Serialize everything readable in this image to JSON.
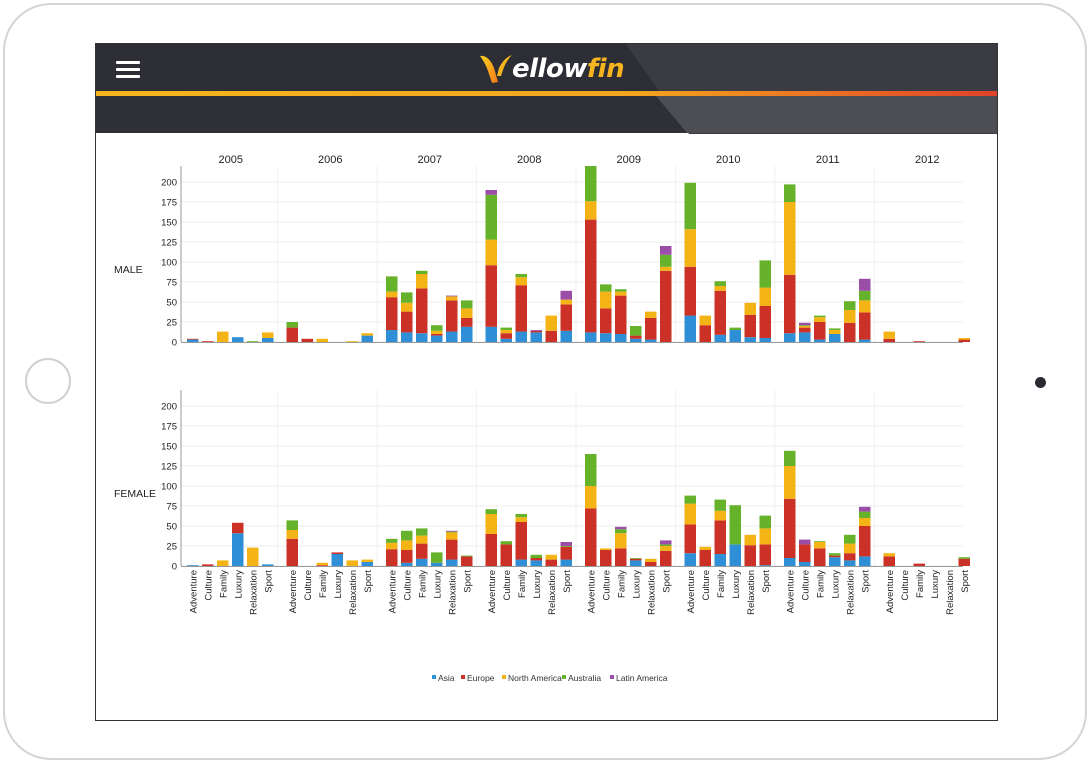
{
  "app": {
    "logo_text_main": "ellow",
    "logo_text_accent": "fin"
  },
  "colors": {
    "Asia": "#2f8fd6",
    "Europe": "#cc3127",
    "North America": "#f5b415",
    "Australia": "#66b22b",
    "Latin America": "#9b4ea8"
  },
  "chart_data": {
    "type": "bar",
    "stacked": true,
    "facet_columns": [
      "2005",
      "2006",
      "2007",
      "2008",
      "2009",
      "2010",
      "2011",
      "2012"
    ],
    "facet_rows": [
      "MALE",
      "FEMALE"
    ],
    "categories": [
      "Adventure",
      "Culture",
      "Family",
      "Luxury",
      "Relaxation",
      "Sport"
    ],
    "series_names": [
      "Asia",
      "Europe",
      "North America",
      "Australia",
      "Latin America"
    ],
    "y_ticks": [
      0,
      25,
      50,
      75,
      100,
      125,
      150,
      175,
      200
    ],
    "ylim": [
      0,
      220
    ],
    "legend_position": "bottom",
    "grid": true,
    "data": {
      "MALE": {
        "2005": [
          [
            3,
            1,
            0,
            0,
            0
          ],
          [
            0,
            1,
            0,
            0,
            0
          ],
          [
            0,
            0,
            13,
            0,
            0
          ],
          [
            6,
            0,
            0,
            0,
            0
          ],
          [
            0,
            0,
            0,
            1,
            0
          ],
          [
            5,
            0,
            7,
            0,
            0
          ]
        ],
        "2006": [
          [
            0,
            18,
            0,
            7,
            0
          ],
          [
            0,
            4,
            0,
            0,
            0
          ],
          [
            0,
            0,
            4,
            0,
            0
          ],
          [
            0,
            0,
            0,
            0,
            0
          ],
          [
            0,
            0,
            1,
            0,
            0
          ],
          [
            8,
            0,
            3,
            0,
            0
          ]
        ],
        "2007": [
          [
            15,
            41,
            7,
            19,
            0
          ],
          [
            12,
            26,
            11,
            13,
            0
          ],
          [
            11,
            56,
            18,
            4,
            0
          ],
          [
            8,
            2,
            4,
            7,
            0
          ],
          [
            13,
            39,
            5,
            0,
            1
          ],
          [
            19,
            11,
            12,
            10,
            0
          ]
        ],
        "2008": [
          [
            19,
            77,
            32,
            56,
            6
          ],
          [
            4,
            7,
            4,
            3,
            0
          ],
          [
            13,
            58,
            10,
            4,
            0
          ],
          [
            12,
            2,
            0,
            0,
            1
          ],
          [
            0,
            14,
            19,
            0,
            0
          ],
          [
            14,
            33,
            6,
            0,
            11
          ]
        ],
        "2009": [
          [
            12,
            141,
            23,
            44,
            0
          ],
          [
            11,
            31,
            21,
            9,
            0
          ],
          [
            10,
            48,
            5,
            3,
            0
          ],
          [
            4,
            4,
            0,
            12,
            0
          ],
          [
            3,
            27,
            8,
            0,
            0
          ],
          [
            0,
            89,
            5,
            15,
            11
          ]
        ],
        "2010": [
          [
            33,
            61,
            47,
            58,
            0
          ],
          [
            0,
            21,
            12,
            0,
            0
          ],
          [
            9,
            55,
            6,
            6,
            0
          ],
          [
            15,
            0,
            0,
            3,
            0
          ],
          [
            6,
            28,
            15,
            0,
            0
          ],
          [
            5,
            40,
            23,
            34,
            0
          ]
        ],
        "2011": [
          [
            11,
            73,
            91,
            22,
            0
          ],
          [
            12,
            6,
            2,
            1,
            3
          ],
          [
            3,
            22,
            6,
            2,
            0
          ],
          [
            10,
            0,
            5,
            2,
            0
          ],
          [
            0,
            24,
            16,
            11,
            0
          ],
          [
            3,
            34,
            15,
            12,
            15
          ]
        ],
        "2012": [
          [
            0,
            4,
            9,
            0,
            0
          ],
          [
            0,
            0,
            0,
            0,
            0
          ],
          [
            0,
            1,
            0,
            0,
            0
          ],
          [
            0,
            0,
            0,
            0,
            0
          ],
          [
            0,
            0,
            0,
            0,
            0
          ],
          [
            0,
            3,
            2,
            0,
            0
          ]
        ]
      },
      "FEMALE": {
        "2005": [
          [
            1,
            0,
            0,
            0,
            0
          ],
          [
            0,
            2,
            0,
            0,
            0
          ],
          [
            0,
            0,
            7,
            0,
            0
          ],
          [
            41,
            13,
            0,
            0,
            0
          ],
          [
            0,
            0,
            23,
            0,
            0
          ],
          [
            2,
            0,
            0,
            0,
            0
          ]
        ],
        "2006": [
          [
            0,
            34,
            11,
            12,
            0
          ],
          [
            0,
            0,
            0,
            0,
            0
          ],
          [
            0,
            1,
            3,
            0,
            0
          ],
          [
            15,
            2,
            0,
            0,
            0
          ],
          [
            0,
            0,
            7,
            0,
            0
          ],
          [
            5,
            0,
            3,
            0,
            0
          ]
        ],
        "2007": [
          [
            0,
            21,
            8,
            5,
            0
          ],
          [
            4,
            16,
            12,
            12,
            0
          ],
          [
            9,
            19,
            10,
            9,
            0
          ],
          [
            4,
            0,
            0,
            13,
            0
          ],
          [
            8,
            25,
            9,
            1,
            1
          ],
          [
            0,
            12,
            0,
            1,
            0
          ]
        ],
        "2008": [
          [
            0,
            40,
            25,
            6,
            0
          ],
          [
            0,
            27,
            0,
            4,
            0
          ],
          [
            8,
            47,
            6,
            4,
            0
          ],
          [
            7,
            3,
            0,
            4,
            0
          ],
          [
            0,
            8,
            6,
            0,
            0
          ],
          [
            8,
            16,
            0,
            1,
            5
          ]
        ],
        "2009": [
          [
            0,
            72,
            28,
            40,
            0
          ],
          [
            0,
            20,
            2,
            0,
            0
          ],
          [
            0,
            22,
            19,
            5,
            3
          ],
          [
            7,
            2,
            0,
            1,
            0
          ],
          [
            0,
            5,
            4,
            0,
            0
          ],
          [
            0,
            19,
            6,
            2,
            5
          ]
        ],
        "2010": [
          [
            16,
            36,
            26,
            10,
            0
          ],
          [
            0,
            20,
            4,
            0,
            0
          ],
          [
            15,
            42,
            12,
            14,
            0
          ],
          [
            27,
            0,
            0,
            49,
            0
          ],
          [
            0,
            26,
            13,
            0,
            0
          ],
          [
            1,
            26,
            20,
            16,
            0
          ]
        ],
        "2011": [
          [
            10,
            74,
            41,
            19,
            0
          ],
          [
            5,
            22,
            0,
            0,
            6
          ],
          [
            0,
            22,
            8,
            1,
            0
          ],
          [
            11,
            2,
            0,
            3,
            0
          ],
          [
            7,
            9,
            12,
            11,
            0
          ],
          [
            12,
            38,
            10,
            8,
            6
          ]
        ],
        "2012": [
          [
            0,
            12,
            4,
            0,
            0
          ],
          [
            0,
            0,
            0,
            0,
            0
          ],
          [
            0,
            3,
            0,
            0,
            0
          ],
          [
            0,
            0,
            0,
            0,
            0
          ],
          [
            0,
            0,
            0,
            0,
            0
          ],
          [
            0,
            9,
            0,
            2,
            0
          ]
        ]
      }
    }
  }
}
